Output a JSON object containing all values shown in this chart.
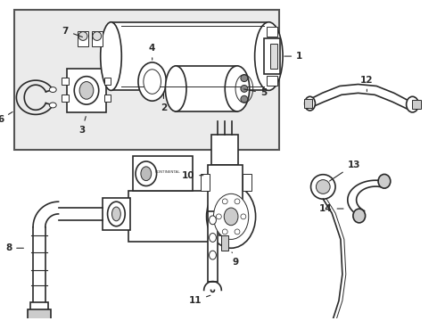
{
  "bg": "#ffffff",
  "box_bg": "#eeeeee",
  "lc": "#2a2a2a",
  "lw_main": 1.2,
  "lw_thin": 0.7,
  "lw_thick": 1.8,
  "label_fs": 7.5,
  "fig_w": 4.9,
  "fig_h": 3.6,
  "dpi": 100
}
